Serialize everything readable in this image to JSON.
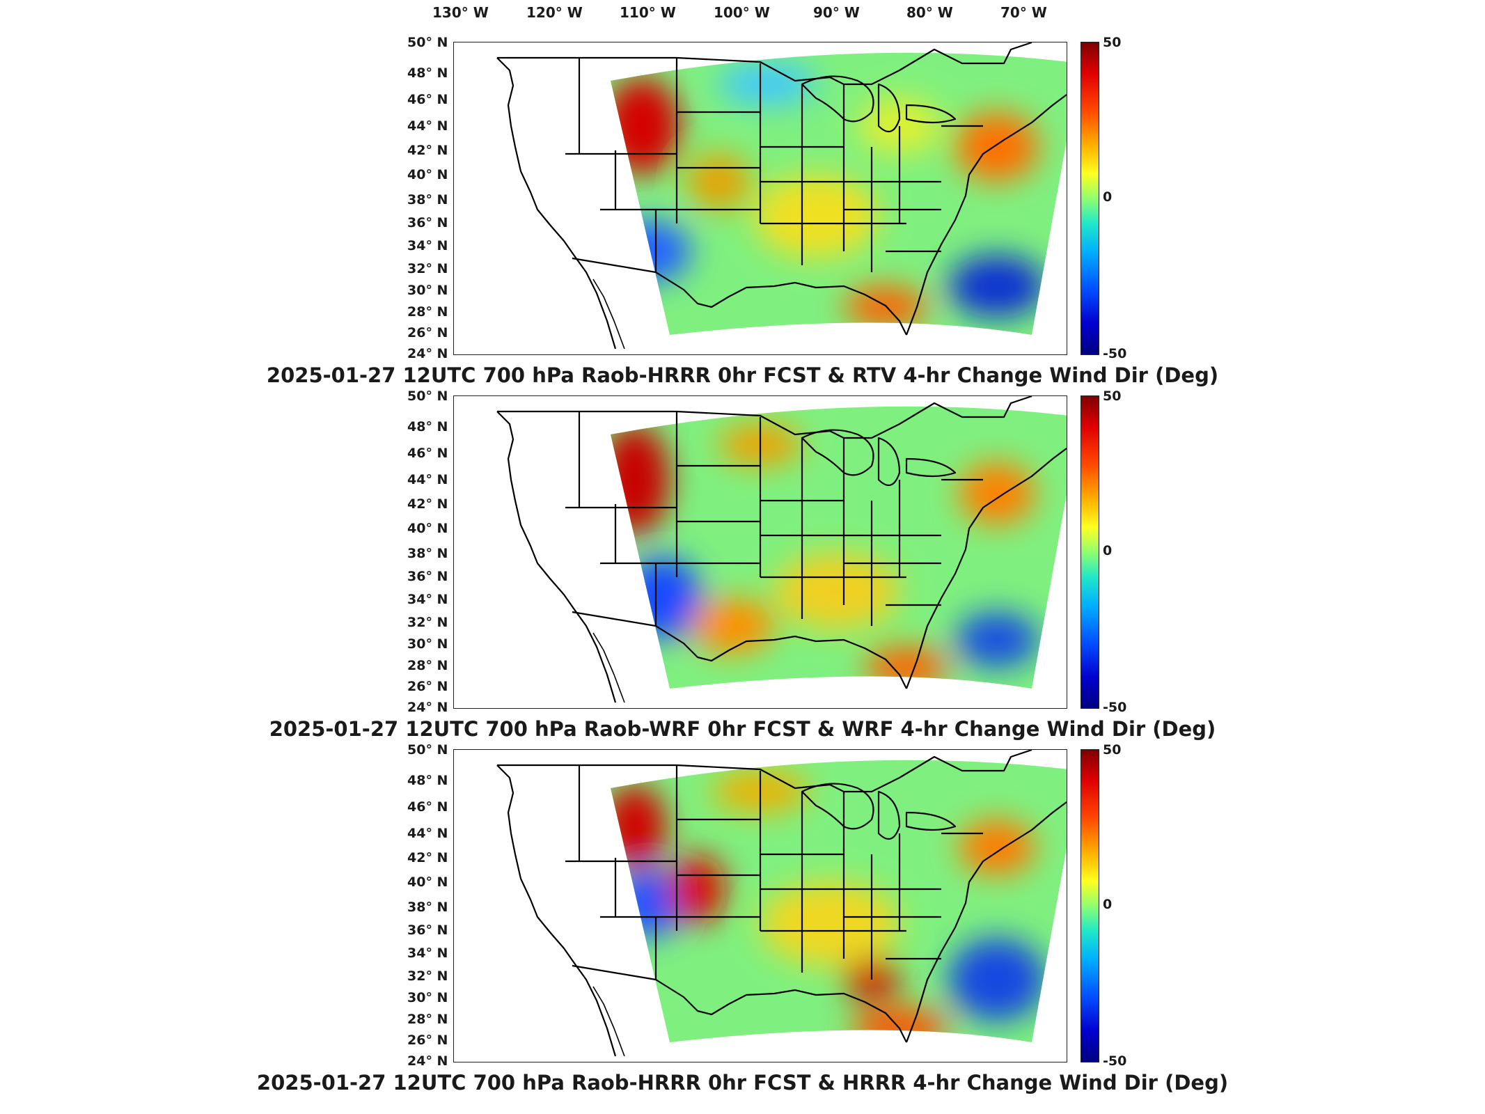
{
  "longitude_labels": [
    "130° W",
    "120° W",
    "110° W",
    "100° W",
    "90° W",
    "80° W",
    "70° W"
  ],
  "latitude_labels": [
    "50° N",
    "48° N",
    "46° N",
    "44° N",
    "42° N",
    "40° N",
    "38° N",
    "36° N",
    "34° N",
    "32° N",
    "30° N",
    "28° N",
    "26° N",
    "24° N"
  ],
  "colorbar": {
    "max_label": "50",
    "mid_label": "0",
    "min_label": "-50"
  },
  "panels": [
    {
      "title": "2025-01-27 12UTC 700 hPa Raob-HRRR 0hr FCST & RTV 4-hr Change Wind Dir (Deg)"
    },
    {
      "title": "2025-01-27 12UTC 700 hPa Raob-WRF 0hr FCST & WRF 4-hr Change Wind Dir (Deg)"
    },
    {
      "title": "2025-01-27 12UTC 700 hPa Raob-HRRR 0hr FCST & HRRR 4-hr Change Wind Dir (Deg)"
    }
  ],
  "colors": {
    "positive": "#e00000",
    "neutral": "#7ff07f",
    "negative": "#0000d0"
  }
}
